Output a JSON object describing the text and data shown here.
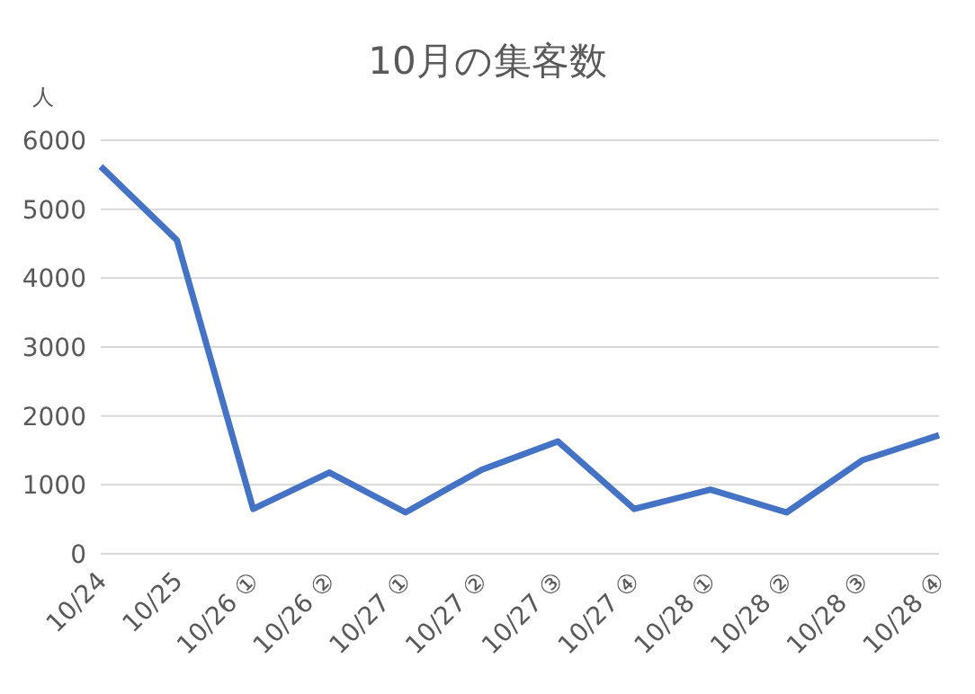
{
  "chart_data": {
    "type": "line",
    "title": "10月の集客数",
    "ylabel": "人",
    "categories": [
      "10/24",
      "10/25",
      "10/26 ①",
      "10/26 ②",
      "10/27 ①",
      "10/27 ②",
      "10/27 ③",
      "10/27 ④",
      "10/28 ①",
      "10/28 ②",
      "10/28 ③",
      "10/28 ④"
    ],
    "series": [
      {
        "color": "#4472c4",
        "values": [
          5620,
          4550,
          650,
          1180,
          600,
          1220,
          1630,
          650,
          930,
          600,
          1360,
          1720
        ]
      }
    ],
    "ylim": [
      0,
      6000
    ],
    "yticks": [
      0,
      1000,
      2000,
      3000,
      4000,
      5000,
      6000
    ],
    "grid": "y",
    "legend": false,
    "marker": "none",
    "line_style": "solid"
  }
}
